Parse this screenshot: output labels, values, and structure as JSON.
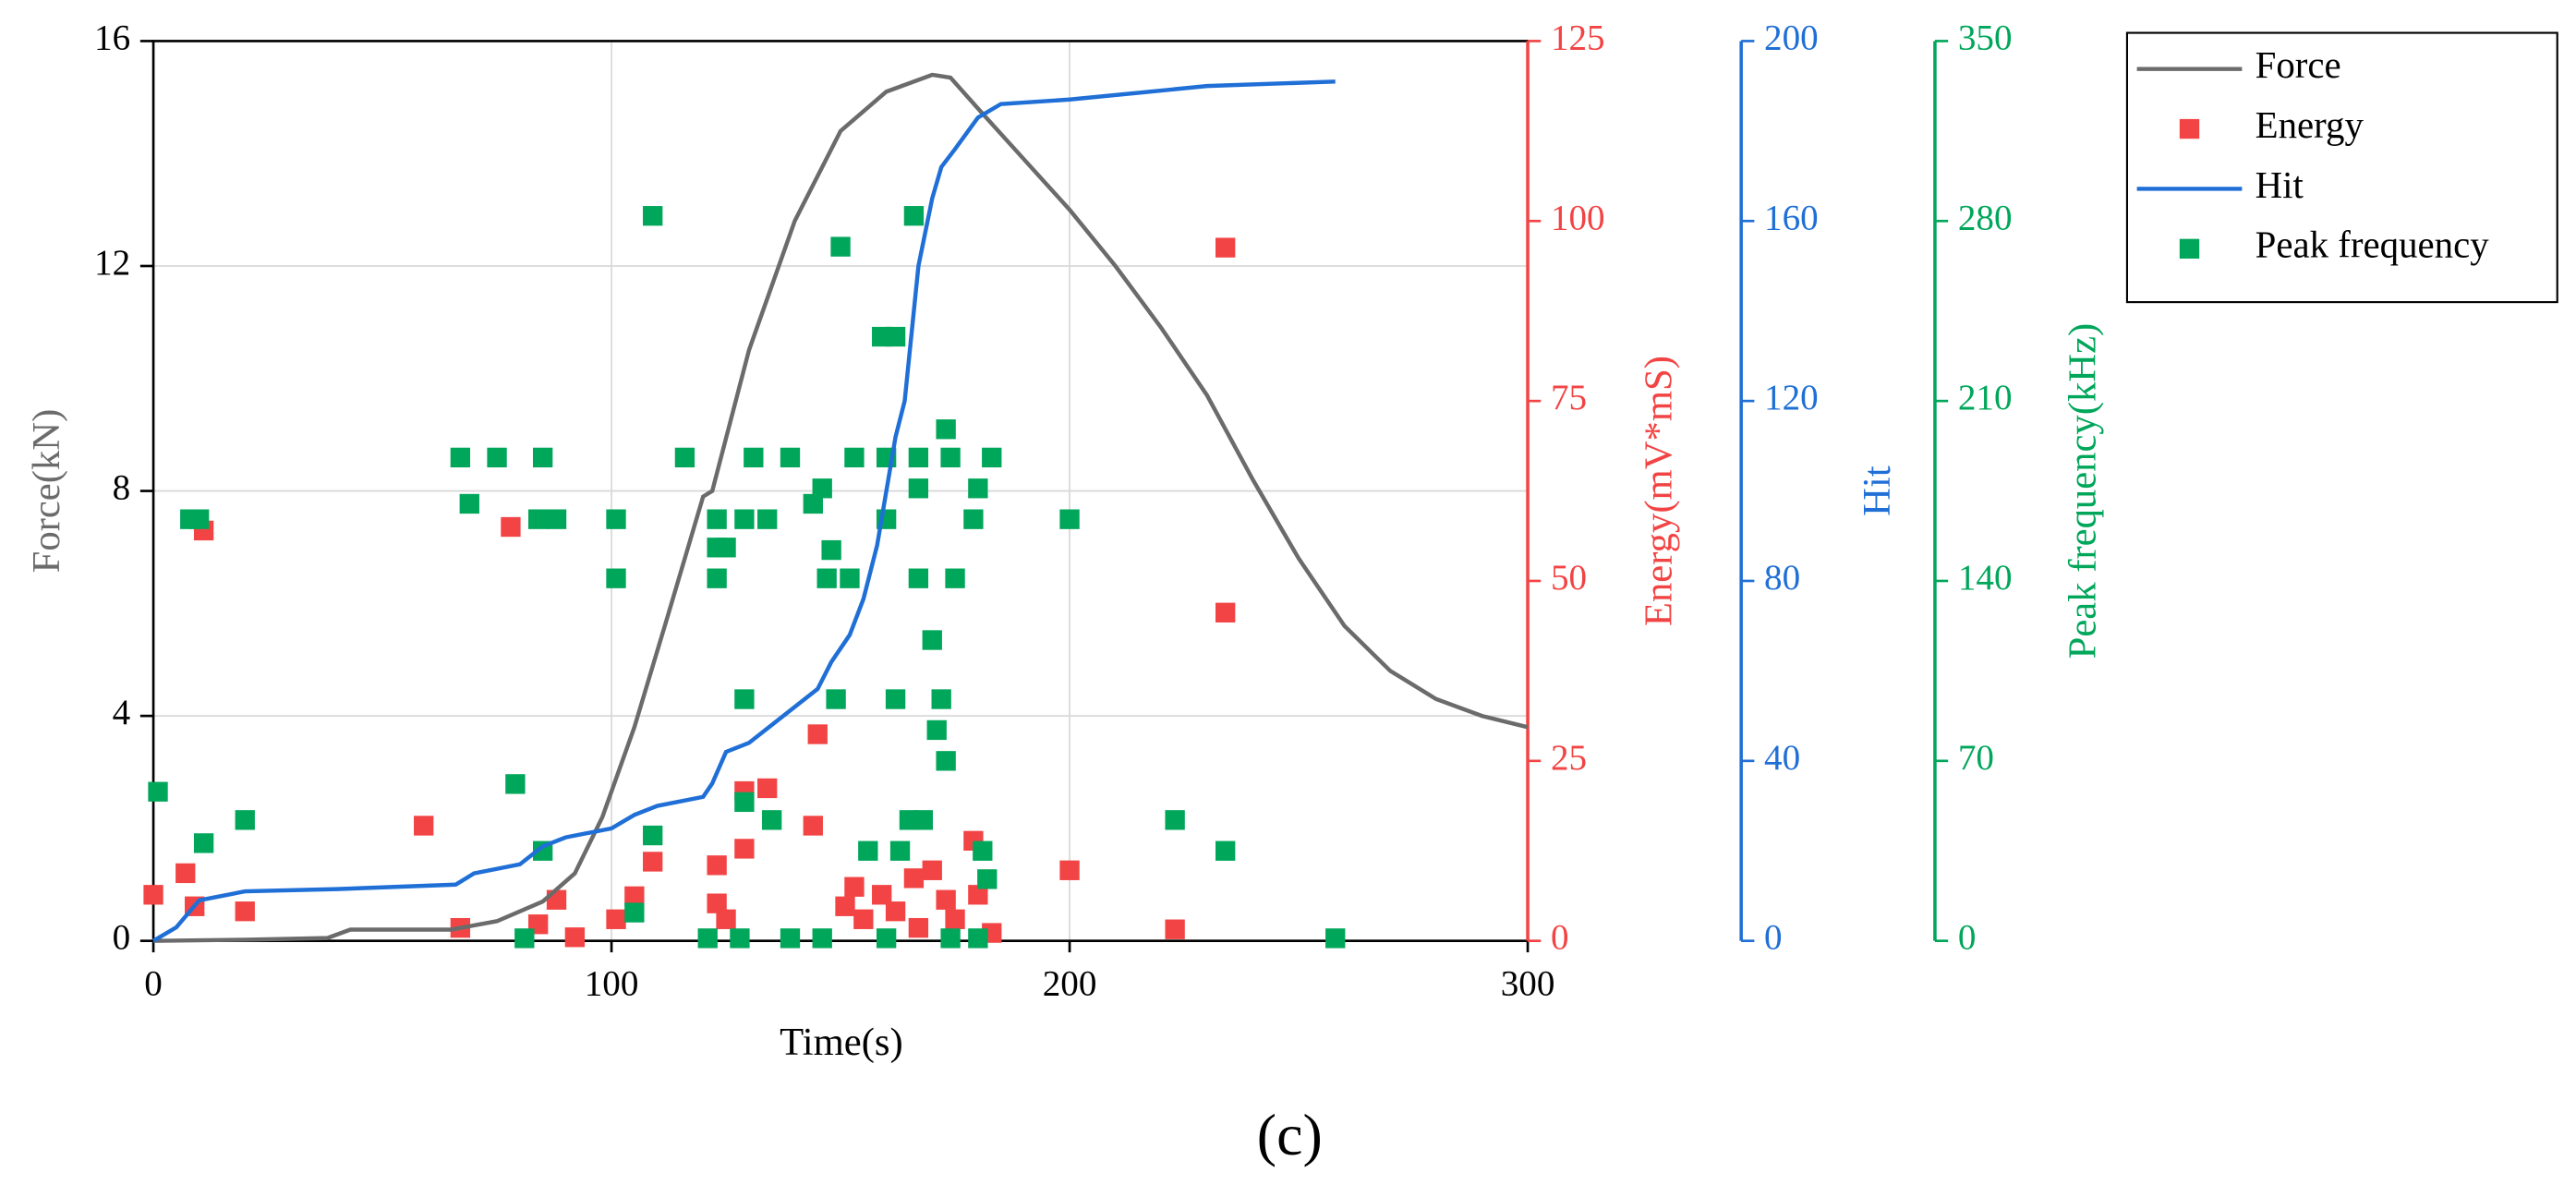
{
  "chart_data": {
    "type": "line",
    "x_label": "Time(s)",
    "y_label": "Force(kN)",
    "y2_label": "Energy(mV*mS)",
    "y3_label": "Hit",
    "y4_label": "Peak frequency(kHz)",
    "caption": "(c)",
    "xlim": [
      0,
      300
    ],
    "xticks": [
      0,
      100,
      200,
      300
    ],
    "ylim": [
      0,
      16
    ],
    "yticks": [
      0,
      4,
      8,
      12,
      16
    ],
    "y2lim": [
      0,
      125
    ],
    "y2ticks": [
      0,
      25,
      50,
      75,
      100,
      125
    ],
    "y3lim": [
      0,
      200
    ],
    "y3ticks": [
      0,
      40,
      80,
      120,
      160,
      200
    ],
    "y4lim": [
      0,
      350
    ],
    "y4ticks": [
      0,
      70,
      140,
      210,
      280,
      350
    ],
    "grid": true,
    "legend": "top-right",
    "series": [
      {
        "name": "Force",
        "type": "line",
        "axis": "y",
        "color": "#6b6b6b",
        "x": [
          0,
          20,
          38,
          43,
          65,
          75,
          85,
          92,
          98,
          105,
          112,
          120,
          122,
          130,
          140,
          150,
          160,
          170,
          174,
          180,
          190,
          200,
          210,
          220,
          230,
          240,
          250,
          260,
          270,
          280,
          290,
          300
        ],
        "values": [
          0,
          0.02,
          0.05,
          0.2,
          0.2,
          0.35,
          0.7,
          1.2,
          2.2,
          3.8,
          5.7,
          7.9,
          8.0,
          10.5,
          12.8,
          14.4,
          15.1,
          15.4,
          15.35,
          14.8,
          13.9,
          13,
          12,
          10.9,
          9.7,
          8.2,
          6.8,
          5.6,
          4.8,
          4.3,
          4.0,
          3.8
        ]
      },
      {
        "name": "Energy",
        "type": "scatter",
        "axis": "y2",
        "color": "#f24444",
        "x": [
          0,
          7,
          9,
          11,
          20,
          59,
          67,
          78,
          84,
          88,
          92,
          101,
          105,
          109,
          123,
          123,
          125,
          129,
          129,
          134,
          145,
          144,
          151,
          153,
          155,
          159,
          162,
          166,
          167,
          170,
          173,
          175,
          179,
          180,
          183,
          200,
          223,
          234,
          234
        ],
        "values": [
          6.4,
          9.4,
          4.8,
          57,
          4.1,
          16,
          1.8,
          57.5,
          2.3,
          5.7,
          0.5,
          3,
          6.2,
          11,
          10.5,
          5.2,
          3,
          20.8,
          12.8,
          21.2,
          28.7,
          16,
          4.8,
          7.5,
          3,
          6.4,
          4.1,
          8.7,
          1.8,
          9.8,
          5.7,
          3,
          13.9,
          6.4,
          1.1,
          9.8,
          1.6,
          96.3,
          45.6
        ]
      },
      {
        "name": "Hit",
        "type": "line",
        "axis": "y3",
        "color": "#1f6fd6",
        "x": [
          0,
          5,
          10,
          20,
          40,
          66,
          70,
          80,
          85,
          90,
          100,
          105,
          110,
          120,
          122,
          125,
          130,
          135,
          140,
          145,
          148,
          152,
          155,
          158,
          160,
          162,
          164,
          165,
          167,
          170,
          172,
          175,
          180,
          185,
          200,
          220,
          230,
          258
        ],
        "values": [
          0,
          3,
          9,
          11,
          11.5,
          12.5,
          15,
          17,
          21,
          23,
          25,
          28,
          30,
          32,
          35,
          42,
          44,
          48,
          52,
          56,
          62,
          68,
          76,
          88,
          100,
          112,
          120,
          130,
          150,
          165,
          172,
          176,
          183,
          186,
          187,
          189,
          190,
          191
        ]
      },
      {
        "name": "Peak frequency",
        "type": "scatter",
        "axis": "y4",
        "color": "#00a65a",
        "x": [
          1,
          8,
          10,
          11,
          20,
          67,
          69,
          75,
          81,
          79,
          85,
          85,
          84,
          88,
          101,
          101,
          105,
          109,
          109,
          116,
          123,
          123,
          125,
          123,
          129,
          129,
          129,
          131,
          134,
          135,
          139,
          144,
          146,
          147,
          148,
          149,
          150,
          152,
          156,
          160,
          159,
          162,
          162,
          163,
          165,
          166,
          167,
          167,
          168,
          170,
          171,
          172,
          173,
          173,
          175,
          179,
          180,
          181,
          182,
          183,
          200,
          223,
          234,
          258,
          153,
          160,
          167,
          174,
          121,
          128,
          139,
          146,
          160,
          174,
          180
        ],
        "values": [
          58,
          164,
          164,
          38,
          47,
          188,
          170,
          188,
          1,
          61,
          35,
          188,
          164,
          164,
          164,
          141,
          11,
          282,
          41,
          188,
          164,
          153,
          153,
          141,
          164,
          94,
          54,
          188,
          164,
          47,
          188,
          170,
          176,
          141,
          152,
          94,
          270,
          141,
          35,
          164,
          235,
          235,
          94,
          35,
          47,
          282,
          176,
          141,
          47,
          117,
          82,
          94,
          70,
          199,
          141,
          164,
          176,
          35,
          24,
          188,
          164,
          47,
          35,
          1,
          188,
          188,
          188,
          188,
          1,
          1,
          1,
          1,
          1,
          1,
          1
        ]
      }
    ]
  }
}
